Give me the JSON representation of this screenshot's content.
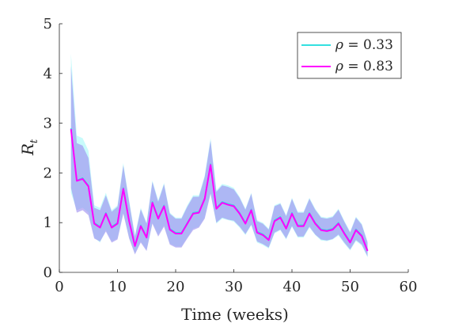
{
  "chart_data": {
    "type": "line",
    "xlabel": "Time  (weeks)",
    "ylabel": "R",
    "ylabel_subscript": "t",
    "xlim": [
      0,
      60
    ],
    "ylim": [
      0,
      5
    ],
    "x_ticks": [
      0,
      10,
      20,
      30,
      40,
      50,
      60
    ],
    "y_ticks": [
      0,
      1,
      2,
      3,
      4,
      5
    ],
    "x_tick_labels": [
      "0",
      "10",
      "20",
      "30",
      "40",
      "50",
      "60"
    ],
    "y_tick_labels": [
      "0",
      "1",
      "2",
      "3",
      "4",
      "5"
    ],
    "grid": false,
    "legend_placement": "top-right",
    "x": [
      2,
      3,
      4,
      5,
      6,
      7,
      8,
      9,
      10,
      11,
      12,
      13,
      14,
      15,
      16,
      17,
      18,
      19,
      20,
      21,
      22,
      23,
      24,
      25,
      26,
      27,
      28,
      29,
      30,
      31,
      32,
      33,
      34,
      35,
      36,
      37,
      38,
      39,
      40,
      41,
      42,
      43,
      44,
      45,
      46,
      47,
      48,
      49,
      50,
      51,
      52,
      53
    ],
    "series": [
      {
        "name": "ρ = 0.33",
        "legend_symbol": "ρ",
        "legend_value": " = 0.33",
        "color": "#33e0e0",
        "values": [
          2.9,
          1.85,
          1.9,
          1.75,
          1.0,
          0.92,
          1.2,
          0.92,
          1.0,
          1.7,
          1.05,
          0.55,
          0.95,
          0.72,
          1.42,
          1.1,
          1.35,
          0.88,
          0.8,
          0.8,
          1.0,
          1.2,
          1.22,
          1.5,
          2.18,
          1.3,
          1.42,
          1.38,
          1.35,
          1.2,
          1.0,
          1.27,
          0.82,
          0.77,
          0.67,
          1.05,
          1.12,
          0.9,
          1.2,
          0.95,
          0.95,
          1.2,
          1.0,
          0.87,
          0.85,
          0.88,
          1.0,
          0.8,
          0.62,
          0.87,
          0.75,
          0.45
        ],
        "lower": [
          1.6,
          1.25,
          1.3,
          1.2,
          0.7,
          0.6,
          0.85,
          0.62,
          0.68,
          1.2,
          0.7,
          0.38,
          0.62,
          0.45,
          1.0,
          0.75,
          0.95,
          0.58,
          0.52,
          0.52,
          0.7,
          0.88,
          0.92,
          1.1,
          1.6,
          0.98,
          1.08,
          1.05,
          1.02,
          0.9,
          0.75,
          0.95,
          0.6,
          0.55,
          0.48,
          0.78,
          0.85,
          0.66,
          0.92,
          0.7,
          0.7,
          0.9,
          0.75,
          0.64,
          0.63,
          0.66,
          0.74,
          0.58,
          0.44,
          0.63,
          0.54,
          0.3
        ],
        "upper": [
          4.4,
          2.75,
          2.7,
          2.45,
          1.35,
          1.3,
          1.6,
          1.25,
          1.35,
          2.2,
          1.45,
          0.75,
          1.3,
          1.0,
          1.85,
          1.45,
          1.8,
          1.2,
          1.1,
          1.1,
          1.35,
          1.55,
          1.55,
          1.95,
          2.7,
          1.65,
          1.78,
          1.75,
          1.7,
          1.52,
          1.28,
          1.6,
          1.05,
          1.0,
          0.88,
          1.35,
          1.4,
          1.15,
          1.5,
          1.22,
          1.22,
          1.5,
          1.28,
          1.12,
          1.1,
          1.13,
          1.28,
          1.04,
          0.82,
          1.12,
          0.98,
          0.62
        ]
      },
      {
        "name": "ρ = 0.83",
        "legend_symbol": "ρ",
        "legend_value": " = 0.83",
        "color": "#ff00ff",
        "values": [
          2.88,
          1.84,
          1.88,
          1.73,
          0.98,
          0.9,
          1.18,
          0.9,
          0.98,
          1.68,
          1.03,
          0.53,
          0.93,
          0.7,
          1.4,
          1.08,
          1.33,
          0.86,
          0.78,
          0.78,
          0.98,
          1.18,
          1.2,
          1.48,
          2.16,
          1.28,
          1.4,
          1.36,
          1.33,
          1.18,
          0.98,
          1.25,
          0.8,
          0.75,
          0.65,
          1.03,
          1.1,
          0.88,
          1.18,
          0.93,
          0.93,
          1.18,
          0.98,
          0.85,
          0.83,
          0.86,
          0.98,
          0.78,
          0.6,
          0.85,
          0.73,
          0.43
        ],
        "lower": [
          1.7,
          1.2,
          1.25,
          1.15,
          0.68,
          0.62,
          0.82,
          0.6,
          0.66,
          1.18,
          0.68,
          0.36,
          0.6,
          0.43,
          0.98,
          0.72,
          0.92,
          0.56,
          0.5,
          0.5,
          0.68,
          0.85,
          0.9,
          1.08,
          1.58,
          1.0,
          1.1,
          1.06,
          1.04,
          0.92,
          0.77,
          0.96,
          0.62,
          0.57,
          0.5,
          0.8,
          0.86,
          0.68,
          0.93,
          0.72,
          0.72,
          0.92,
          0.76,
          0.66,
          0.64,
          0.67,
          0.76,
          0.6,
          0.46,
          0.65,
          0.56,
          0.32
        ],
        "upper": [
          4.15,
          2.6,
          2.55,
          2.3,
          1.3,
          1.25,
          1.55,
          1.22,
          1.32,
          2.15,
          1.42,
          0.72,
          1.27,
          0.98,
          1.82,
          1.42,
          1.77,
          1.18,
          1.08,
          1.08,
          1.32,
          1.52,
          1.52,
          1.92,
          2.65,
          1.62,
          1.75,
          1.72,
          1.67,
          1.5,
          1.26,
          1.58,
          1.03,
          0.98,
          0.86,
          1.33,
          1.38,
          1.13,
          1.48,
          1.2,
          1.2,
          1.48,
          1.26,
          1.1,
          1.08,
          1.11,
          1.26,
          1.02,
          0.8,
          1.1,
          0.96,
          0.6
        ],
        "band_color": "#9b8af0"
      }
    ]
  }
}
